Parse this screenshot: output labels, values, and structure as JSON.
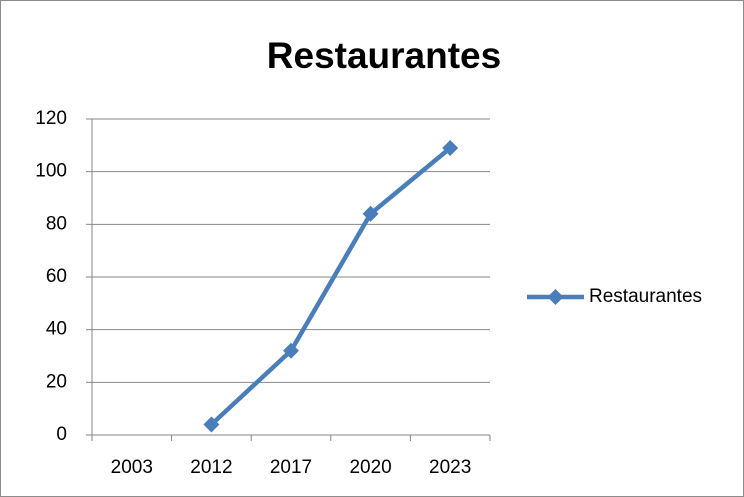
{
  "chart_data": {
    "type": "line",
    "title": "Restaurantes",
    "categories": [
      "2003",
      "2012",
      "2017",
      "2020",
      "2023"
    ],
    "series": [
      {
        "name": "Restaurantes",
        "color": "#4a7ebb",
        "values": [
          null,
          4,
          32,
          84,
          109
        ]
      }
    ],
    "ylim": [
      0,
      120
    ],
    "yticks": [
      0,
      20,
      40,
      60,
      80,
      100,
      120
    ],
    "grid": true,
    "legend": "right"
  }
}
